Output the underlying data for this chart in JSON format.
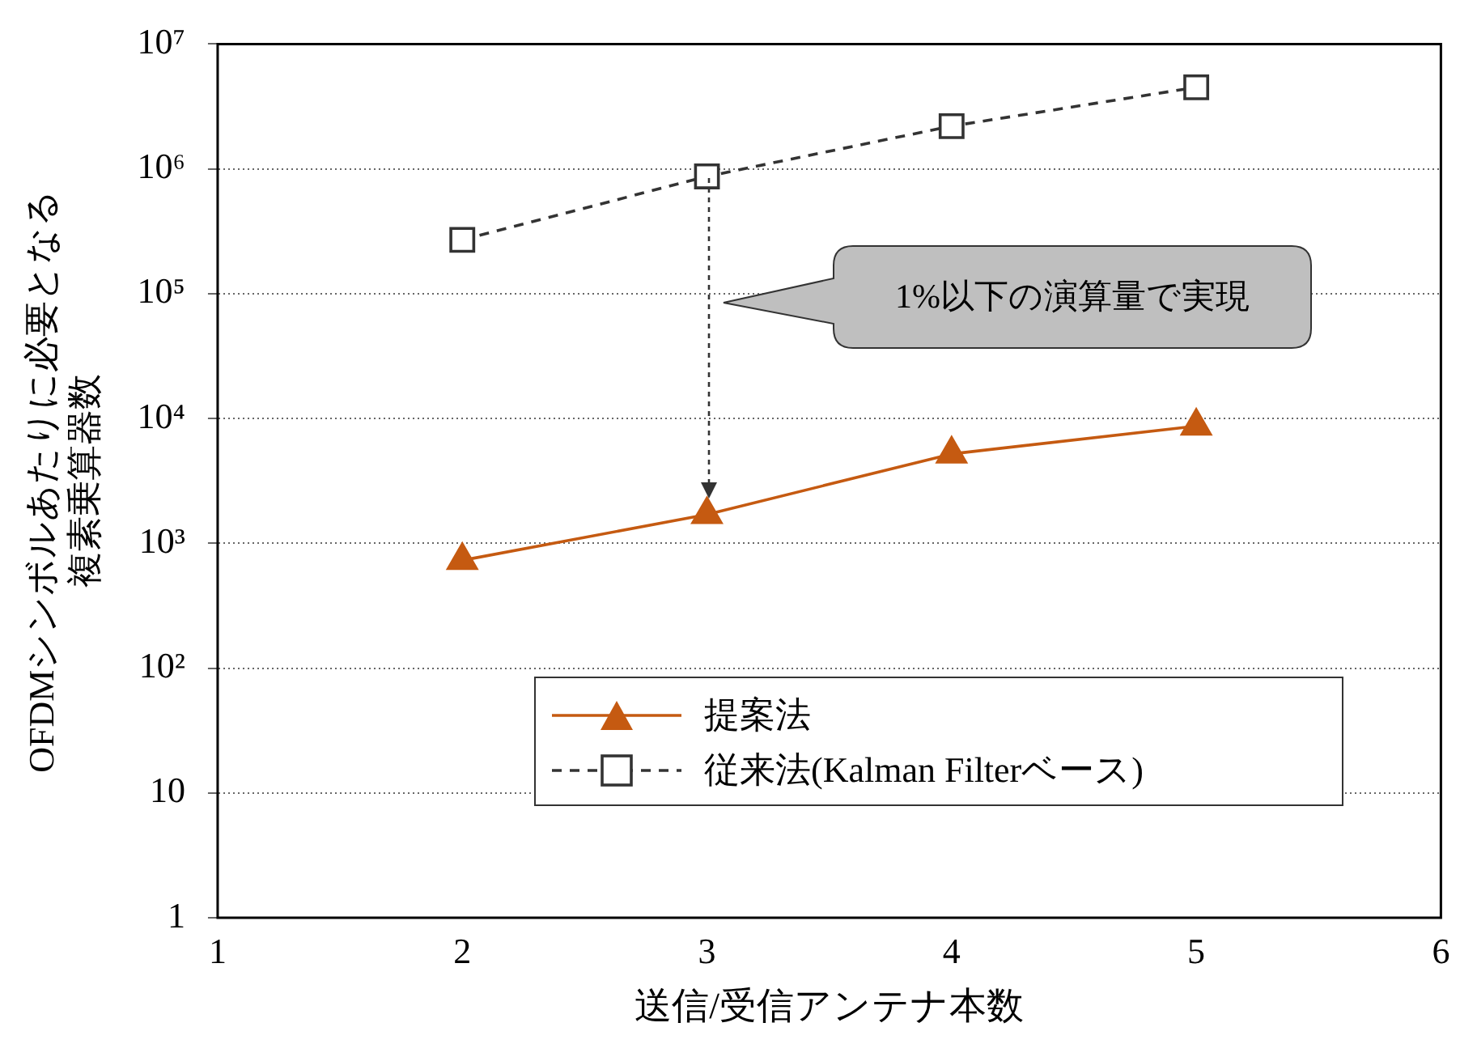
{
  "chart_data": {
    "type": "line",
    "xlabel": "送信/受信アンテナ本数",
    "ylabel": "OFDMシンボルあたりに必要となる複素乗算器数",
    "x": [
      2,
      3,
      4,
      5
    ],
    "series": [
      {
        "name": "提案法",
        "color": "#c55a11",
        "values": [
          730,
          1700,
          5200,
          8700
        ],
        "marker": "triangle",
        "line_style": "solid"
      },
      {
        "name": "従来法(Kalman Filterベース)",
        "color": "#333333",
        "values": [
          270000,
          870000,
          2200000,
          4500000
        ],
        "marker": "square",
        "line_style": "dashed"
      }
    ],
    "xlim": [
      1,
      6
    ],
    "xticks": [
      1,
      2,
      3,
      4,
      5,
      6
    ],
    "ylim": [
      1,
      10000000
    ],
    "yticks": [
      1,
      10,
      {
        "value": 100,
        "label": "10²"
      },
      {
        "value": 1000,
        "label": "10³"
      },
      {
        "value": 10000,
        "label": "10⁴"
      },
      {
        "value": 100000,
        "label": "10⁵"
      },
      {
        "value": 1000000,
        "label": "10⁶"
      },
      {
        "value": 10000000,
        "label": "10⁷"
      }
    ],
    "log": "y",
    "grid": "y",
    "legend": "bottom right",
    "annotations": [
      "1%以下の演算量で実現"
    ]
  }
}
